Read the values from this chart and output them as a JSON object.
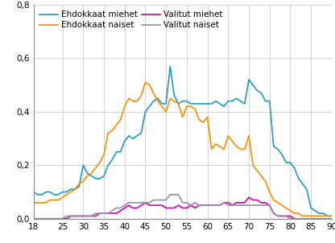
{
  "xlim": [
    18,
    90
  ],
  "ylim": [
    0,
    0.8
  ],
  "xticks": [
    18,
    25,
    30,
    35,
    40,
    45,
    50,
    55,
    60,
    65,
    70,
    75,
    80,
    85,
    90
  ],
  "yticks": [
    0.0,
    0.2,
    0.4,
    0.6,
    0.8
  ],
  "ytick_labels": [
    "0,0",
    "0,2",
    "0,4",
    "0,6",
    "0,8"
  ],
  "series": {
    "ehdokkaat_miehet": {
      "color": "#2196c8",
      "label": "Ehdokkaat miehet",
      "lw": 1.2
    },
    "ehdokkaat_naiset": {
      "color": "#ff8c00",
      "label": "Ehdokkaat naiset",
      "lw": 1.2
    },
    "valitut_miehet": {
      "color": "#cc00aa",
      "label": "Valitut miehet",
      "lw": 1.2
    },
    "valitut_naiset": {
      "color": "#9090a0",
      "label": "Valitut naiset",
      "lw": 1.2
    }
  },
  "ages": [
    18,
    19,
    20,
    21,
    22,
    23,
    24,
    25,
    26,
    27,
    28,
    29,
    30,
    31,
    32,
    33,
    34,
    35,
    36,
    37,
    38,
    39,
    40,
    41,
    42,
    43,
    44,
    45,
    46,
    47,
    48,
    49,
    50,
    51,
    52,
    53,
    54,
    55,
    56,
    57,
    58,
    59,
    60,
    61,
    62,
    63,
    64,
    65,
    66,
    67,
    68,
    69,
    70,
    71,
    72,
    73,
    74,
    75,
    76,
    77,
    78,
    79,
    80,
    81,
    82,
    83,
    84,
    85,
    86,
    87,
    88,
    89,
    90
  ],
  "ehdokkaat_miehet_vals": [
    0.1,
    0.09,
    0.09,
    0.1,
    0.1,
    0.09,
    0.09,
    0.1,
    0.1,
    0.11,
    0.11,
    0.12,
    0.2,
    0.17,
    0.16,
    0.15,
    0.15,
    0.16,
    0.2,
    0.22,
    0.25,
    0.25,
    0.29,
    0.31,
    0.3,
    0.31,
    0.32,
    0.4,
    0.42,
    0.44,
    0.45,
    0.43,
    0.43,
    0.57,
    0.46,
    0.43,
    0.44,
    0.44,
    0.43,
    0.43,
    0.43,
    0.43,
    0.43,
    0.43,
    0.44,
    0.43,
    0.42,
    0.44,
    0.44,
    0.45,
    0.44,
    0.43,
    0.52,
    0.5,
    0.48,
    0.47,
    0.44,
    0.44,
    0.27,
    0.26,
    0.24,
    0.21,
    0.21,
    0.19,
    0.15,
    0.13,
    0.11,
    0.04,
    0.03,
    0.02,
    0.02,
    0.01,
    0.01
  ],
  "ehdokkaat_naiset_vals": [
    0.06,
    0.06,
    0.06,
    0.06,
    0.07,
    0.07,
    0.07,
    0.08,
    0.09,
    0.1,
    0.11,
    0.13,
    0.14,
    0.16,
    0.17,
    0.19,
    0.21,
    0.24,
    0.32,
    0.33,
    0.35,
    0.37,
    0.42,
    0.45,
    0.44,
    0.44,
    0.46,
    0.51,
    0.5,
    0.47,
    0.44,
    0.42,
    0.4,
    0.45,
    0.44,
    0.43,
    0.38,
    0.42,
    0.42,
    0.41,
    0.37,
    0.36,
    0.38,
    0.26,
    0.28,
    0.27,
    0.26,
    0.31,
    0.29,
    0.27,
    0.26,
    0.26,
    0.31,
    0.2,
    0.18,
    0.16,
    0.14,
    0.1,
    0.07,
    0.06,
    0.05,
    0.04,
    0.03,
    0.02,
    0.02,
    0.01,
    0.01,
    0.01,
    0.01,
    0.01,
    0.01,
    0.01,
    0.01
  ],
  "valitut_miehet_vals": [
    0.0,
    0.0,
    0.0,
    0.0,
    0.0,
    0.0,
    0.0,
    0.0,
    0.0,
    0.01,
    0.01,
    0.01,
    0.01,
    0.01,
    0.01,
    0.01,
    0.02,
    0.02,
    0.02,
    0.02,
    0.02,
    0.03,
    0.04,
    0.05,
    0.04,
    0.04,
    0.05,
    0.06,
    0.05,
    0.05,
    0.05,
    0.05,
    0.04,
    0.04,
    0.04,
    0.05,
    0.04,
    0.04,
    0.05,
    0.04,
    0.05,
    0.05,
    0.05,
    0.05,
    0.05,
    0.05,
    0.06,
    0.06,
    0.05,
    0.06,
    0.06,
    0.06,
    0.08,
    0.07,
    0.07,
    0.06,
    0.06,
    0.05,
    0.02,
    0.01,
    0.01,
    0.01,
    0.01,
    0.0,
    0.0,
    0.0,
    0.0,
    0.0,
    0.0,
    0.0,
    0.0,
    0.0,
    0.0
  ],
  "valitut_naiset_vals": [
    0.0,
    0.0,
    0.0,
    0.0,
    0.0,
    0.0,
    0.0,
    0.0,
    0.01,
    0.01,
    0.01,
    0.01,
    0.01,
    0.01,
    0.01,
    0.02,
    0.02,
    0.02,
    0.02,
    0.03,
    0.04,
    0.04,
    0.05,
    0.06,
    0.06,
    0.06,
    0.06,
    0.06,
    0.06,
    0.07,
    0.07,
    0.07,
    0.07,
    0.09,
    0.09,
    0.09,
    0.06,
    0.06,
    0.05,
    0.06,
    0.05,
    0.05,
    0.05,
    0.05,
    0.05,
    0.05,
    0.06,
    0.05,
    0.05,
    0.05,
    0.05,
    0.05,
    0.05,
    0.05,
    0.05,
    0.05,
    0.05,
    0.05,
    0.02,
    0.01,
    0.01,
    0.01,
    0.0,
    0.0,
    0.0,
    0.0,
    0.0,
    0.0,
    0.0,
    0.0,
    0.0,
    0.0,
    0.0
  ],
  "grid_color": "#cccccc",
  "bg_color": "#ffffff",
  "font_size": 7.5
}
